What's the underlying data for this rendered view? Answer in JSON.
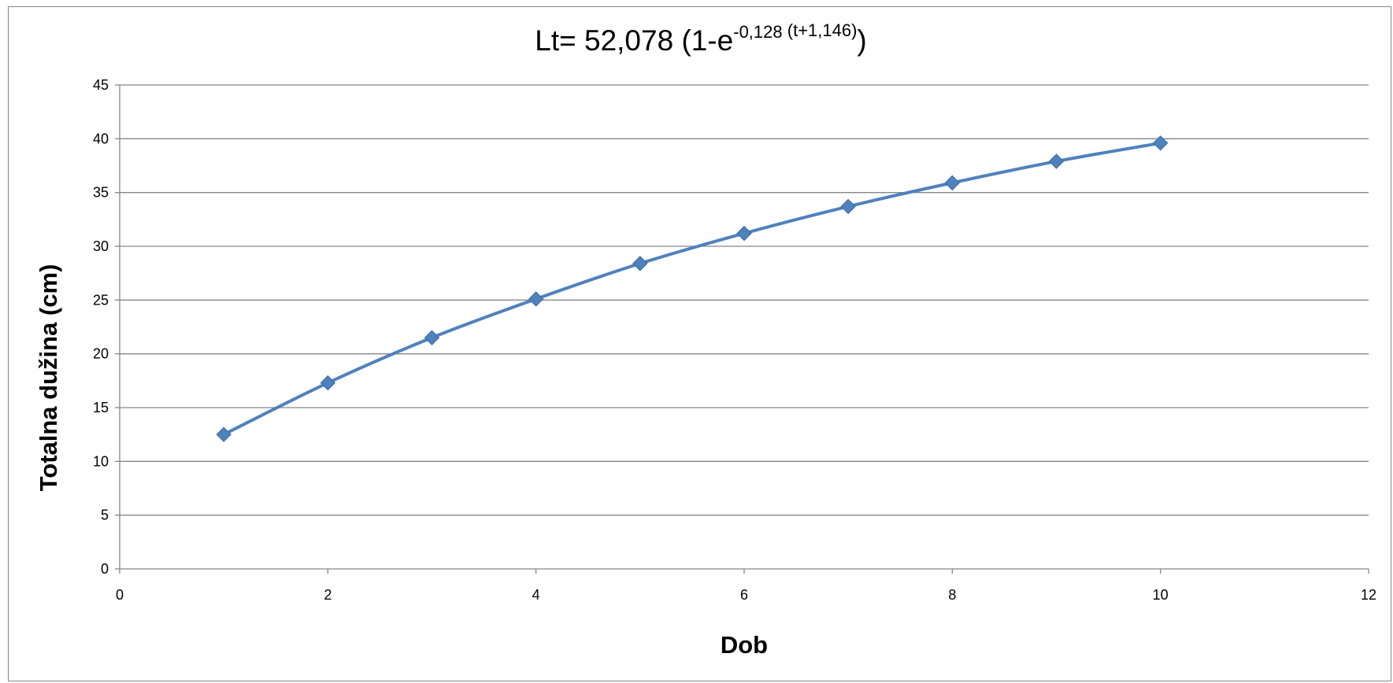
{
  "chart_data": {
    "type": "line",
    "title": {
      "prefix": "Lt= 52,078 (1-e",
      "superscript_main": "-0,128",
      "superscript_paren": " (t+1,146)",
      "suffix": ")"
    },
    "xlabel": "Dob",
    "ylabel": "Totalna dužina (cm)",
    "xlim": [
      0,
      12
    ],
    "ylim": [
      0,
      45
    ],
    "x_ticks": [
      0,
      2,
      4,
      6,
      8,
      10,
      12
    ],
    "y_ticks": [
      0,
      5,
      10,
      15,
      20,
      25,
      30,
      35,
      40,
      45
    ],
    "grid": {
      "horizontal": true,
      "vertical": false
    },
    "legend": "none",
    "marker": "diamond",
    "series": [
      {
        "x": [
          1,
          2,
          3,
          4,
          5,
          6,
          7,
          8,
          9,
          10
        ],
        "values": [
          12.5,
          17.3,
          21.5,
          25.1,
          28.4,
          31.2,
          33.7,
          35.9,
          37.9,
          39.6
        ],
        "color": "#4F81BD"
      }
    ]
  }
}
